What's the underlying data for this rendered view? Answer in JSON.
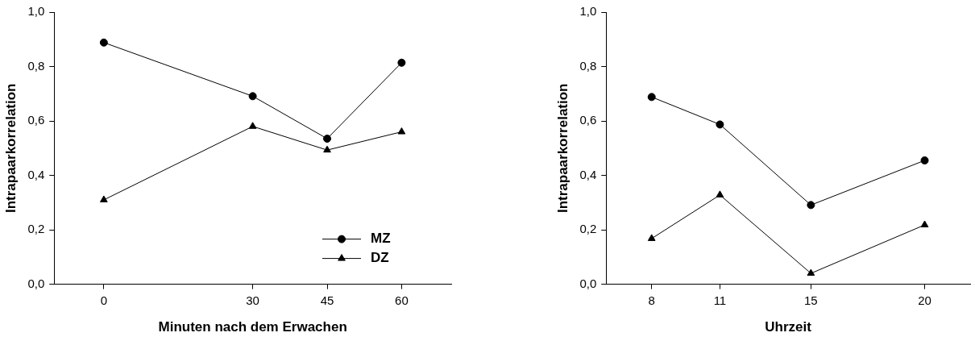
{
  "chart_data": [
    {
      "type": "line",
      "xlabel": "Minuten nach dem Erwachen",
      "ylabel": "Intrapaarkorrelation",
      "x": [
        0,
        30,
        45,
        60
      ],
      "series": [
        {
          "name": "MZ",
          "color": "#000000",
          "marker": "circle",
          "values": [
            0.888,
            0.691,
            0.535,
            0.814
          ]
        },
        {
          "name": "DZ",
          "color": "#000000",
          "marker": "triangle",
          "values": [
            0.31,
            0.58,
            0.493,
            0.56
          ]
        }
      ],
      "xlim": [
        -10,
        70
      ],
      "xticks": [
        0,
        30,
        45,
        60
      ],
      "ylim": [
        0,
        1
      ],
      "yticks": [
        {
          "value": 0,
          "label": "0,0"
        },
        {
          "value": 0.2,
          "label": "0,2"
        },
        {
          "value": 0.4,
          "label": "0,4"
        },
        {
          "value": 0.6,
          "label": "0,6"
        },
        {
          "value": 0.8,
          "label": "0,8"
        },
        {
          "value": 1,
          "label": "1,0"
        }
      ],
      "grid": false,
      "legend": "bottom right",
      "line_style": "solid"
    },
    {
      "type": "line",
      "xlabel": "Uhrzeit",
      "ylabel": "Intrapaarkorrelation",
      "x": [
        8,
        11,
        15,
        20
      ],
      "series": [
        {
          "color": "#000000",
          "marker": "circle",
          "values": [
            0.688,
            0.587,
            0.291,
            0.455
          ]
        },
        {
          "color": "#000000",
          "marker": "triangle",
          "values": [
            0.168,
            0.328,
            0.04,
            0.218
          ]
        }
      ],
      "xlim": [
        6,
        22
      ],
      "xticks": [
        8,
        11,
        15,
        20
      ],
      "ylim": [
        0,
        1
      ],
      "yticks": [
        {
          "value": 0,
          "label": "0,0"
        },
        {
          "value": 0.2,
          "label": "0,2"
        },
        {
          "value": 0.4,
          "label": "0,4"
        },
        {
          "value": 0.6,
          "label": "0,6"
        },
        {
          "value": 0.8,
          "label": "0,8"
        },
        {
          "value": 1,
          "label": "1,0"
        }
      ],
      "grid": false,
      "legend": false,
      "line_style": "solid"
    }
  ]
}
